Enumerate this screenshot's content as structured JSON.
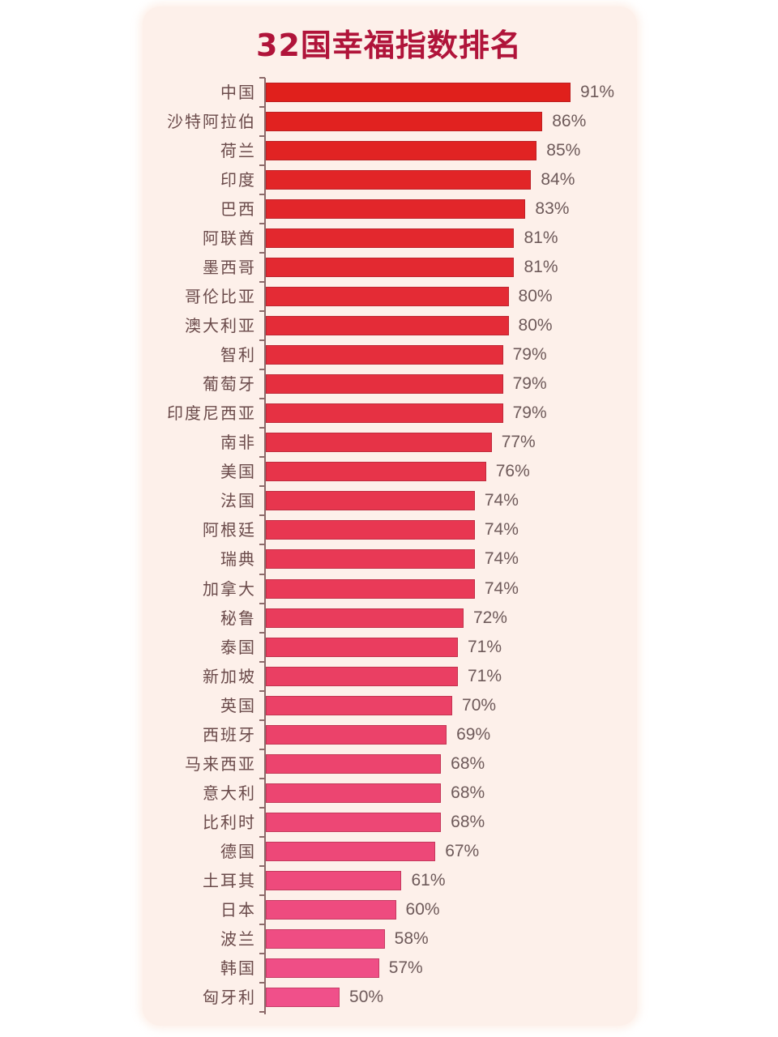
{
  "title": "32国幸福指数排名",
  "chart_data": {
    "type": "bar",
    "orientation": "horizontal",
    "title": "32国幸福指数排名",
    "xlabel": "",
    "ylabel": "",
    "unit": "%",
    "grid": false,
    "legend": null,
    "categories": [
      "中国",
      "沙特阿拉伯",
      "荷兰",
      "印度",
      "巴西",
      "阿联酋",
      "墨西哥",
      "哥伦比亚",
      "澳大利亚",
      "智利",
      "葡萄牙",
      "印度尼西亚",
      "南非",
      "美国",
      "法国",
      "阿根廷",
      "瑞典",
      "加拿大",
      "秘鲁",
      "泰国",
      "新加坡",
      "英国",
      "西班牙",
      "马来西亚",
      "意大利",
      "比利时",
      "德国",
      "土耳其",
      "日本",
      "波兰",
      "韩国",
      "匈牙利"
    ],
    "values": [
      91,
      86,
      85,
      84,
      83,
      81,
      81,
      80,
      80,
      79,
      79,
      79,
      77,
      76,
      74,
      74,
      74,
      74,
      72,
      71,
      71,
      70,
      69,
      68,
      68,
      68,
      67,
      61,
      60,
      58,
      57,
      50
    ],
    "value_labels": [
      "91%",
      "86%",
      "85%",
      "84%",
      "83%",
      "81%",
      "81%",
      "80%",
      "80%",
      "79%",
      "79%",
      "79%",
      "77%",
      "76%",
      "74%",
      "74%",
      "74%",
      "74%",
      "72%",
      "71%",
      "71%",
      "70%",
      "69%",
      "68%",
      "68%",
      "68%",
      "67%",
      "61%",
      "60%",
      "58%",
      "57%",
      "50%"
    ],
    "colors": {
      "top": "#e0201c",
      "bottom": "#f0508a",
      "title": "#b0143a",
      "background": "#fdf0ea"
    }
  }
}
